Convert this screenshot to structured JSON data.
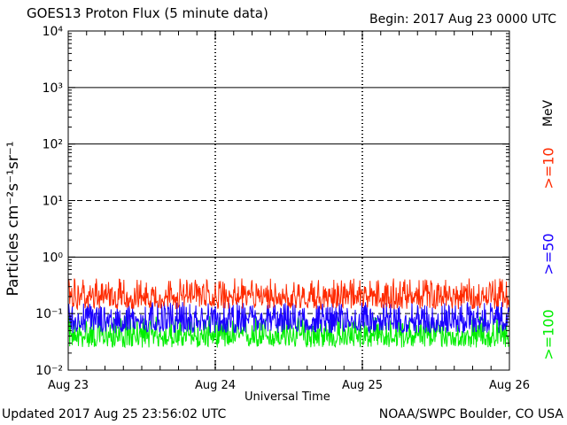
{
  "chart_data": {
    "type": "line",
    "title": "GOES13 Proton Flux (5 minute data)",
    "begin": "Begin: 2017 Aug 23 0000 UTC",
    "xlabel": "Universal Time",
    "ylabel": "Particles cm⁻²s⁻¹sr⁻¹",
    "yscale": "log",
    "ylim": [
      0.01,
      10000
    ],
    "ytick_labels": [
      "10⁴",
      "10³",
      "10²",
      "10¹",
      "10⁰",
      "10⁻¹",
      "10⁻²"
    ],
    "x_tick_labels": [
      "Aug 23",
      "Aug 24",
      "Aug 25",
      "Aug 26"
    ],
    "xlim_days": [
      0,
      3
    ],
    "grid": true,
    "threshold_lines": [
      {
        "value": 1000,
        "style": "solid"
      },
      {
        "value": 100,
        "style": "solid"
      },
      {
        "value": 10,
        "style": "dashed"
      },
      {
        "value": 1,
        "style": "solid"
      },
      {
        "value": 0.1,
        "style": "dashed"
      }
    ],
    "legend_unit": "MeV",
    "series": [
      {
        "name": ">=10",
        "color": "#ff2a00",
        "typical": 0.2,
        "low": 0.12,
        "high": 0.42
      },
      {
        "name": ">=50",
        "color": "#1a00ff",
        "typical": 0.075,
        "low": 0.045,
        "high": 0.16
      },
      {
        "name": ">=100",
        "color": "#00ee00",
        "typical": 0.04,
        "low": 0.025,
        "high": 0.09
      }
    ],
    "data_end_day": 2.997
  },
  "footer": {
    "updated": "Updated 2017 Aug 25 23:56:02 UTC",
    "source": "NOAA/SWPC Boulder, CO USA"
  }
}
